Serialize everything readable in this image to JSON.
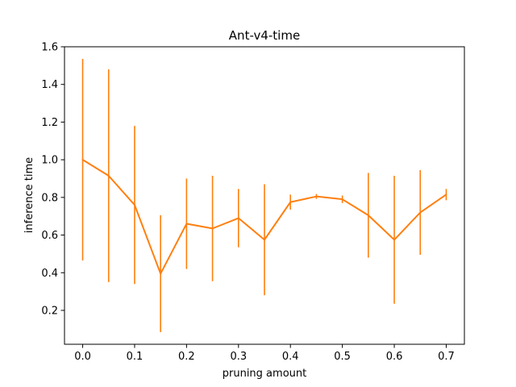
{
  "chart_data": {
    "type": "line",
    "title": "Ant-v4-time",
    "xlabel": "pruning amount",
    "ylabel": "inference time",
    "xlim": [
      -0.035,
      0.735
    ],
    "ylim": [
      0.02,
      1.6
    ],
    "xticks": [
      0.0,
      0.1,
      0.2,
      0.3,
      0.4,
      0.5,
      0.6,
      0.7
    ],
    "xtick_labels": [
      "0.0",
      "0.1",
      "0.2",
      "0.3",
      "0.4",
      "0.5",
      "0.6",
      "0.7"
    ],
    "yticks": [
      0.2,
      0.4,
      0.6,
      0.8,
      1.0,
      1.2,
      1.4,
      1.6
    ],
    "ytick_labels": [
      "0.2",
      "0.4",
      "0.6",
      "0.8",
      "1.0",
      "1.2",
      "1.4",
      "1.6"
    ],
    "grid": false,
    "legend": "none",
    "series": [
      {
        "color": "#ff7f0e",
        "x": [
          0.0,
          0.05,
          0.1,
          0.15,
          0.2,
          0.25,
          0.3,
          0.35,
          0.4,
          0.45,
          0.5,
          0.55,
          0.6,
          0.65,
          0.7
        ],
        "y": [
          1.0,
          0.915,
          0.76,
          0.395,
          0.66,
          0.635,
          0.69,
          0.575,
          0.775,
          0.805,
          0.79,
          0.705,
          0.575,
          0.72,
          0.815
        ],
        "err": [
          0.535,
          0.565,
          0.42,
          0.31,
          0.24,
          0.28,
          0.155,
          0.295,
          0.04,
          0.013,
          0.02,
          0.225,
          0.34,
          0.225,
          0.03
        ]
      }
    ]
  }
}
